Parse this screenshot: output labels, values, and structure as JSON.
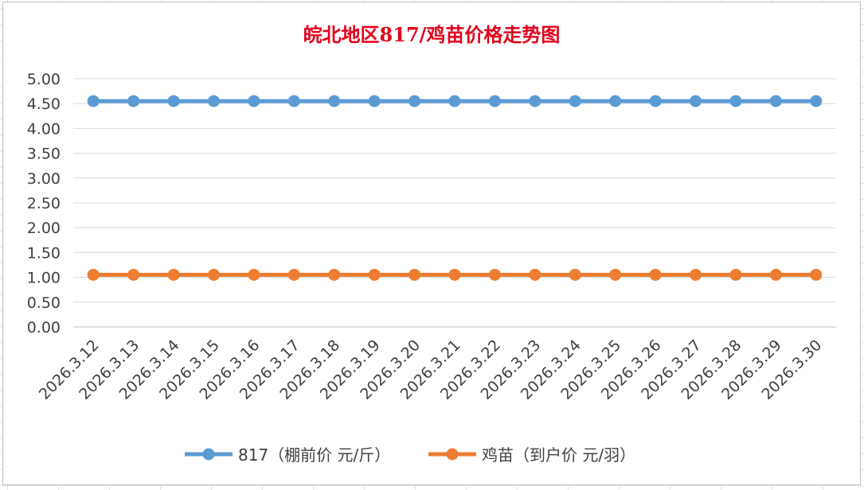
{
  "chart_data": {
    "type": "line",
    "title": "皖北地区817/鸡苗价格走势图",
    "x": [
      "2026.3.12",
      "2026.3.13",
      "2026.3.14",
      "2026.3.15",
      "2026.3.16",
      "2026.3.17",
      "2026.3.18",
      "2026.3.19",
      "2026.3.20",
      "2026.3.21",
      "2026.3.22",
      "2026.3.23",
      "2026.3.24",
      "2026.3.25",
      "2026.3.26",
      "2026.3.27",
      "2026.3.28",
      "2026.3.29",
      "2026.3.30"
    ],
    "ylim": [
      0,
      5
    ],
    "yticks": [
      "0.00",
      "0.50",
      "1.00",
      "1.50",
      "2.00",
      "2.50",
      "3.00",
      "3.50",
      "4.00",
      "4.50",
      "5.00"
    ],
    "grid": true,
    "legend_position": "bottom",
    "series": [
      {
        "name": "817（棚前价 元/斤）",
        "color": "#5b9bd5",
        "values": [
          4.55,
          4.55,
          4.55,
          4.55,
          4.55,
          4.55,
          4.55,
          4.55,
          4.55,
          4.55,
          4.55,
          4.55,
          4.55,
          4.55,
          4.55,
          4.55,
          4.55,
          4.55,
          4.55
        ]
      },
      {
        "name": "鸡苗（到户价 元/羽）",
        "color": "#ed7d31",
        "values": [
          1.05,
          1.05,
          1.05,
          1.05,
          1.05,
          1.05,
          1.05,
          1.05,
          1.05,
          1.05,
          1.05,
          1.05,
          1.05,
          1.05,
          1.05,
          1.05,
          1.05,
          1.05,
          1.05
        ]
      }
    ]
  }
}
